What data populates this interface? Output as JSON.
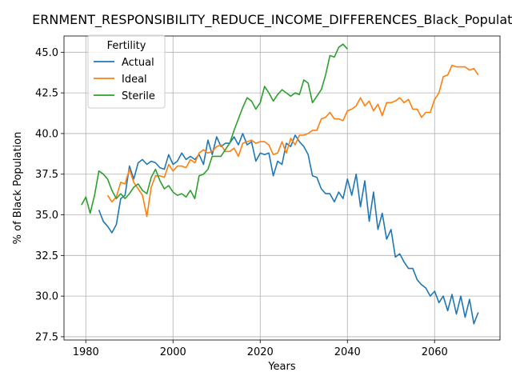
{
  "chart_data": {
    "type": "line",
    "title": "ERNMENT_RESPONSIBILITY_REDUCE_INCOME_DIFFERENCES_Black_Population",
    "xlabel": "Years",
    "ylabel": "% of Black Population",
    "xlim": [
      1975,
      2075
    ],
    "ylim": [
      27.3,
      46.0
    ],
    "xticks": [
      1980,
      2000,
      2020,
      2040,
      2060
    ],
    "yticks": [
      27.5,
      30.0,
      32.5,
      35.0,
      37.5,
      40.0,
      42.5,
      45.0
    ],
    "xtick_labels": [
      "1980",
      "2000",
      "2020",
      "2040",
      "2060"
    ],
    "ytick_labels": [
      "27.5",
      "30.0",
      "32.5",
      "35.0",
      "37.5",
      "40.0",
      "42.5",
      "45.0"
    ],
    "grid": true,
    "legend_title": "Fertility",
    "legend_position": "top-left",
    "series": [
      {
        "name": "Actual",
        "color": "#1f77b4",
        "x": [
          1983,
          1984,
          1985,
          1986,
          1987,
          1988,
          1989,
          1990,
          1991,
          1992,
          1993,
          1994,
          1995,
          1996,
          1997,
          1998,
          1999,
          2000,
          2001,
          2002,
          2003,
          2004,
          2005,
          2006,
          2007,
          2008,
          2009,
          2010,
          2011,
          2012,
          2013,
          2014,
          2015,
          2016,
          2017,
          2018,
          2019,
          2020,
          2021,
          2022,
          2023,
          2024,
          2025,
          2026,
          2027,
          2028,
          2029,
          2030,
          2031,
          2032,
          2033,
          2034,
          2035,
          2036,
          2037,
          2038,
          2039,
          2040,
          2041,
          2042,
          2043,
          2044,
          2045,
          2046,
          2047,
          2048,
          2049,
          2050,
          2051,
          2052,
          2053,
          2054,
          2055,
          2056,
          2057,
          2058,
          2059,
          2060,
          2061,
          2062,
          2063,
          2064,
          2065,
          2066,
          2067,
          2068,
          2069,
          2070
        ],
        "values": [
          35.3,
          34.6,
          34.3,
          33.9,
          34.4,
          36.0,
          36.2,
          38.0,
          37.2,
          38.2,
          38.4,
          38.1,
          38.3,
          38.2,
          37.9,
          37.8,
          38.7,
          38.1,
          38.3,
          38.8,
          38.4,
          38.6,
          38.4,
          38.7,
          38.1,
          39.6,
          38.7,
          39.8,
          39.2,
          39.4,
          39.4,
          39.8,
          39.3,
          40.0,
          39.3,
          39.5,
          38.3,
          38.8,
          38.7,
          38.8,
          37.4,
          38.3,
          38.1,
          39.4,
          39.2,
          39.9,
          39.5,
          39.2,
          38.7,
          37.4,
          37.3,
          36.6,
          36.3,
          36.3,
          35.8,
          36.4,
          36.0,
          37.2,
          36.2,
          37.5,
          35.5,
          37.1,
          34.6,
          36.4,
          34.1,
          35.1,
          33.5,
          34.1,
          32.4,
          32.6,
          32.1,
          31.7,
          31.7,
          31.0,
          30.7,
          30.5,
          30.0,
          30.3,
          29.6,
          30.0,
          29.1,
          30.1,
          28.9,
          30.0,
          28.7,
          29.8,
          28.3,
          29.0
        ]
      },
      {
        "name": "Ideal",
        "color": "#ff7f0e",
        "x": [
          1985,
          1986,
          1987,
          1988,
          1989,
          1990,
          1991,
          1992,
          1993,
          1994,
          1995,
          1996,
          1997,
          1998,
          1999,
          2000,
          2001,
          2002,
          2003,
          2004,
          2005,
          2006,
          2007,
          2008,
          2009,
          2010,
          2011,
          2012,
          2013,
          2014,
          2015,
          2016,
          2017,
          2018,
          2019,
          2020,
          2021,
          2022,
          2023,
          2024,
          2025,
          2026,
          2027,
          2028,
          2029,
          2030,
          2031,
          2032,
          2033,
          2034,
          2035,
          2036,
          2037,
          2038,
          2039,
          2040,
          2041,
          2042,
          2043,
          2044,
          2045,
          2046,
          2047,
          2048,
          2049,
          2050,
          2051,
          2052,
          2053,
          2054,
          2055,
          2056,
          2057,
          2058,
          2059,
          2060,
          2061,
          2062,
          2063,
          2064,
          2065,
          2066,
          2067,
          2068,
          2069,
          2070
        ],
        "values": [
          36.2,
          35.8,
          36.1,
          37.0,
          36.9,
          37.8,
          37.0,
          36.6,
          36.2,
          34.9,
          36.7,
          37.4,
          37.4,
          37.3,
          38.1,
          37.7,
          38.0,
          38.0,
          37.9,
          38.4,
          38.2,
          38.8,
          39.0,
          38.8,
          38.9,
          39.2,
          39.3,
          38.9,
          38.9,
          39.1,
          38.6,
          39.4,
          39.5,
          39.6,
          39.4,
          39.5,
          39.5,
          39.3,
          38.7,
          38.8,
          39.5,
          38.8,
          39.7,
          39.3,
          39.9,
          39.9,
          40.0,
          40.2,
          40.2,
          40.9,
          41.0,
          41.3,
          40.9,
          40.9,
          40.8,
          41.4,
          41.5,
          41.7,
          42.2,
          41.7,
          42.0,
          41.4,
          41.8,
          41.1,
          41.9,
          41.9,
          42.0,
          42.2,
          41.9,
          42.1,
          41.5,
          41.5,
          41.0,
          41.3,
          41.3,
          42.1,
          42.5,
          43.5,
          43.6,
          44.2,
          44.1,
          44.1,
          44.1,
          43.9,
          44.0,
          43.6
        ]
      },
      {
        "name": "Sterile",
        "color": "#2ca02c",
        "x": [
          1979,
          1980,
          1981,
          1982,
          1983,
          1984,
          1985,
          1986,
          1987,
          1988,
          1989,
          1990,
          1991,
          1992,
          1993,
          1994,
          1995,
          1996,
          1997,
          1998,
          1999,
          2000,
          2001,
          2002,
          2003,
          2004,
          2005,
          2006,
          2007,
          2008,
          2009,
          2010,
          2011,
          2012,
          2013,
          2014,
          2015,
          2016,
          2017,
          2018,
          2019,
          2020,
          2021,
          2022,
          2023,
          2024,
          2025,
          2026,
          2027,
          2028,
          2029,
          2030,
          2031,
          2032,
          2033,
          2034,
          2035,
          2036,
          2037,
          2038,
          2039,
          2040
        ],
        "values": [
          35.6,
          36.1,
          35.1,
          36.2,
          37.7,
          37.5,
          37.2,
          36.5,
          36.0,
          36.3,
          36.0,
          36.3,
          36.7,
          36.9,
          36.5,
          36.3,
          37.3,
          37.8,
          37.1,
          36.6,
          36.8,
          36.4,
          36.2,
          36.3,
          36.1,
          36.5,
          36.0,
          37.4,
          37.5,
          37.8,
          38.6,
          38.6,
          38.6,
          39.0,
          39.4,
          40.2,
          40.9,
          41.6,
          42.2,
          42.0,
          41.5,
          41.9,
          42.9,
          42.5,
          42.0,
          42.4,
          42.7,
          42.5,
          42.3,
          42.5,
          42.4,
          43.3,
          43.1,
          41.9,
          42.3,
          42.7,
          43.6,
          44.8,
          44.7,
          45.3,
          45.5,
          45.2
        ]
      }
    ]
  }
}
